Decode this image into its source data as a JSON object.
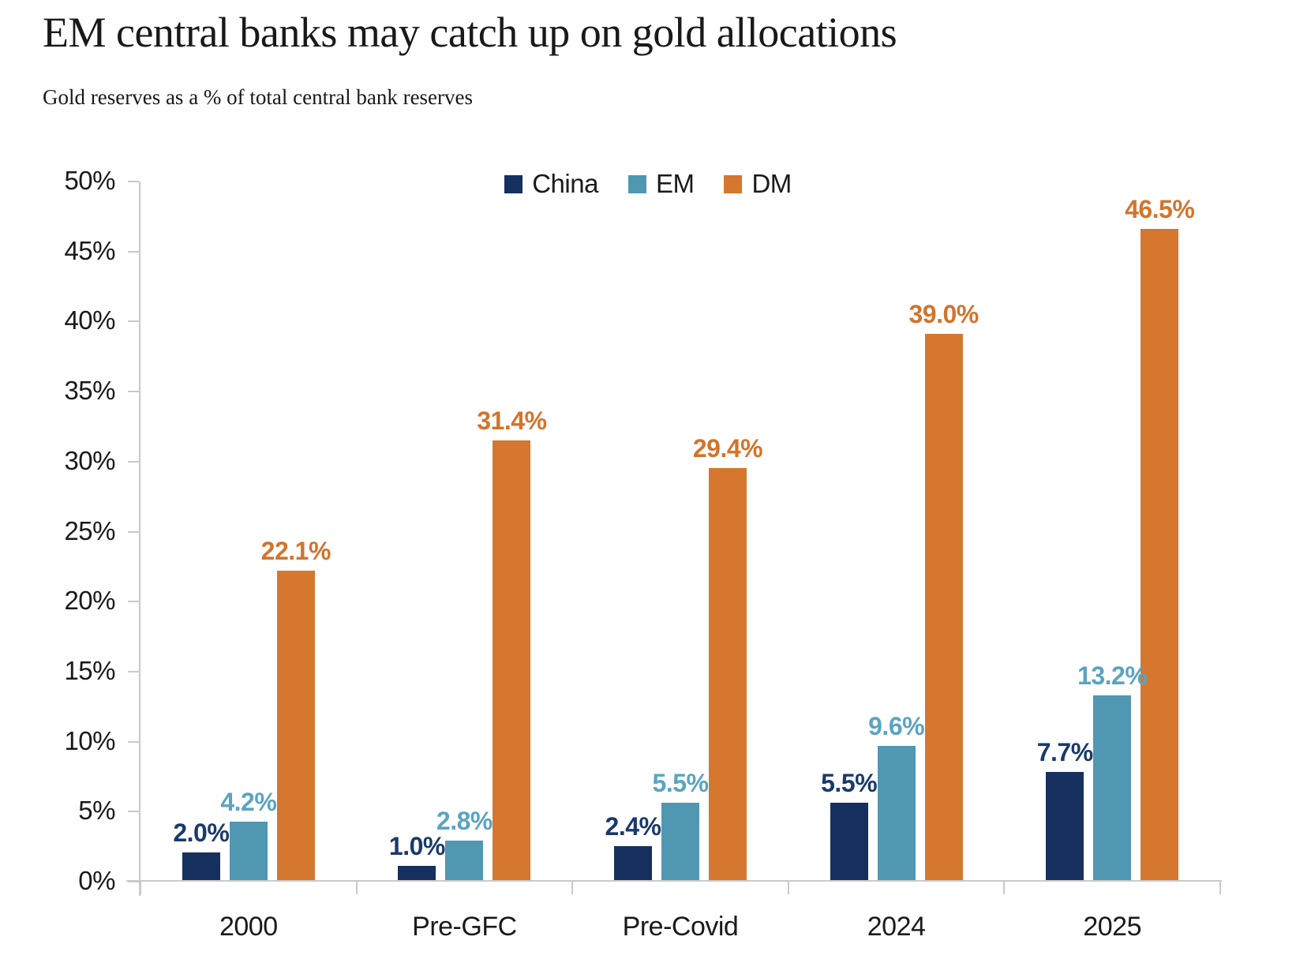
{
  "chart_data": {
    "type": "bar",
    "title": "EM central banks may catch up on gold allocations",
    "subtitle": "Gold reserves as a % of total central bank reserves",
    "categories": [
      "2000",
      "Pre-GFC",
      "Pre-Covid",
      "2024",
      "2025"
    ],
    "series": [
      {
        "name": "China",
        "color": "#16305f",
        "label_color": "#1a3a6b",
        "values": [
          2.0,
          1.0,
          2.4,
          5.5,
          7.7
        ],
        "labels": [
          "2.0%",
          "1.0%",
          "2.4%",
          "5.5%",
          "7.7%"
        ]
      },
      {
        "name": "EM",
        "color": "#5097b2",
        "label_color": "#5ba4bf",
        "values": [
          4.2,
          2.8,
          5.5,
          9.6,
          13.2
        ],
        "labels": [
          "4.2%",
          "2.8%",
          "5.5%",
          "9.6%",
          "13.2%"
        ]
      },
      {
        "name": "DM",
        "color": "#d5772e",
        "label_color": "#d1742c",
        "values": [
          22.1,
          31.4,
          29.4,
          39.0,
          46.5
        ],
        "labels": [
          "22.1%",
          "31.4%",
          "29.4%",
          "39.0%",
          "46.5%"
        ]
      }
    ],
    "xlabel": "",
    "ylabel": "",
    "ylim": [
      0,
      50
    ],
    "ytick_step": 5,
    "ytick_labels": [
      "0%",
      "5%",
      "10%",
      "15%",
      "20%",
      "25%",
      "30%",
      "35%",
      "40%",
      "45%",
      "50%"
    ],
    "grid": false,
    "legend_position": "top-center",
    "axis_color": "#c9c9c9",
    "text_color": "#1a1a1a"
  }
}
